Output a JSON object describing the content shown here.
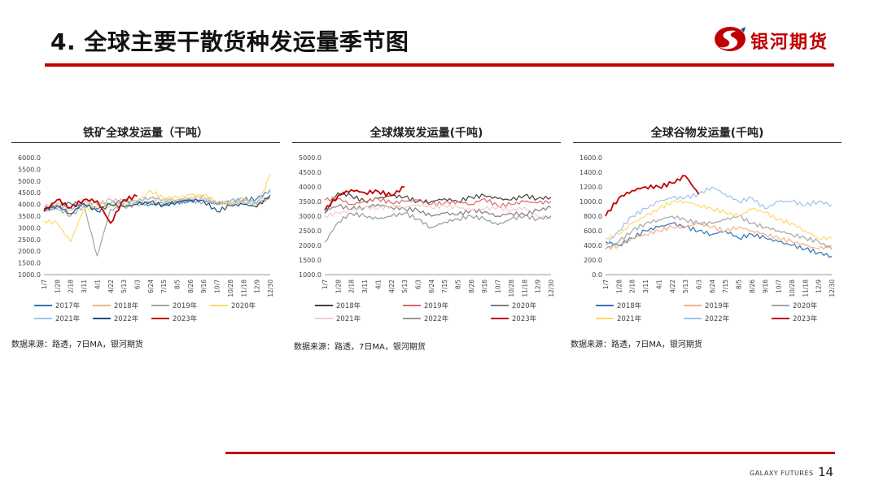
{
  "slide": {
    "title": "4. 全球主要干散货种发运量季节图",
    "brand": "银河期货",
    "footer_brand": "GALAXY FUTURES",
    "page_number": "14"
  },
  "colors": {
    "accent": "#c00000"
  },
  "chart_data": [
    {
      "id": "iron",
      "type": "line",
      "title": "铁矿全球发运量（干吨）",
      "source": "数据来源：路透，7日MA，银河期货",
      "ylim": [
        1000,
        6000
      ],
      "yticks": [
        "6000.0",
        "5500.0",
        "5000.0",
        "4500.0",
        "4000.0",
        "3500.0",
        "3000.0",
        "2500.0",
        "2000.0",
        "1500.0",
        "1000.0"
      ],
      "ytick_values": [
        6000,
        5500,
        5000,
        4500,
        4000,
        3500,
        3000,
        2500,
        2000,
        1500,
        1000
      ],
      "xticks": [
        "1/7",
        "1/28",
        "2/18",
        "3/11",
        "4/1",
        "4/22",
        "5/13",
        "6/3",
        "6/24",
        "7/15",
        "8/5",
        "8/26",
        "9/16",
        "10/7",
        "10/28",
        "11/18",
        "12/9",
        "12/30"
      ],
      "legend": "bottom",
      "legend_cols": 4,
      "series": [
        {
          "name": "2017年",
          "color": "#2e75b6",
          "values": [
            3800,
            3950,
            4050,
            4000,
            3800,
            4050,
            4150,
            4100,
            4000,
            4000,
            4100,
            4150,
            4200,
            4000,
            4150,
            4200,
            4250,
            4600
          ]
        },
        {
          "name": "2018年",
          "color": "#f4b183",
          "values": [
            3900,
            4050,
            3750,
            4200,
            4000,
            4200,
            4150,
            4150,
            4250,
            4200,
            4200,
            4300,
            4350,
            4050,
            4100,
            4250,
            4050,
            4300
          ]
        },
        {
          "name": "2019年",
          "color": "#a5a5a5",
          "values": [
            3700,
            3850,
            3500,
            3950,
            1800,
            3800,
            3900,
            4000,
            4050,
            4050,
            4100,
            4150,
            4100,
            4050,
            4050,
            4100,
            4000,
            4300
          ]
        },
        {
          "name": "2020年",
          "color": "#ffd966",
          "values": [
            3300,
            3200,
            2400,
            3800,
            3900,
            3950,
            4000,
            4050,
            4600,
            4250,
            4300,
            4400,
            4400,
            4100,
            4000,
            4250,
            3850,
            5300
          ]
        },
        {
          "name": "2021年",
          "color": "#9dc3e6",
          "values": [
            3750,
            3800,
            3850,
            4000,
            4050,
            4050,
            4050,
            4150,
            4300,
            4200,
            4150,
            4200,
            4200,
            4050,
            4150,
            4150,
            4100,
            4650
          ]
        },
        {
          "name": "2022年",
          "color": "#1f4e79",
          "values": [
            3800,
            3950,
            3600,
            4050,
            3700,
            4000,
            3900,
            4000,
            4100,
            3950,
            4100,
            4200,
            4150,
            3700,
            3950,
            4000,
            3900,
            4400
          ]
        },
        {
          "name": "2023年",
          "color": "#c00000",
          "values": [
            3700,
            4200,
            3850,
            4200,
            4150,
            3200,
            4200,
            4350,
            null,
            null,
            null,
            null,
            null,
            null,
            null,
            null,
            null,
            null
          ]
        }
      ]
    },
    {
      "id": "coal",
      "type": "line",
      "title": "全球煤炭发运量(千吨)",
      "source": "数据来源：路透，7日MA，银河期货",
      "ylim": [
        1000,
        5000
      ],
      "yticks": [
        "5000.0",
        "4500.0",
        "4000.0",
        "3500.0",
        "3000.0",
        "2500.0",
        "2000.0",
        "1500.0",
        "1000.0"
      ],
      "ytick_values": [
        5000,
        4500,
        4000,
        3500,
        3000,
        2500,
        2000,
        1500,
        1000
      ],
      "xticks": [
        "1/7",
        "1/28",
        "2/18",
        "3/11",
        "4/1",
        "4/22",
        "5/13",
        "6/3",
        "6/24",
        "7/15",
        "8/5",
        "8/26",
        "9/16",
        "10/7",
        "10/28",
        "11/18",
        "12/9",
        "12/30"
      ],
      "legend": "bottom",
      "legend_cols": 3,
      "series": [
        {
          "name": "2018年",
          "color": "#404040",
          "values": [
            3100,
            3800,
            3700,
            3500,
            3600,
            3700,
            3650,
            3500,
            3500,
            3600,
            3500,
            3650,
            3700,
            3600,
            3550,
            3700,
            3600,
            3650
          ]
        },
        {
          "name": "2019年",
          "color": "#e06666",
          "values": [
            3550,
            3600,
            3400,
            3500,
            3600,
            3450,
            3500,
            3550,
            3400,
            3450,
            3500,
            3400,
            3600,
            3350,
            3400,
            3500,
            3450,
            3500
          ]
        },
        {
          "name": "2020年",
          "color": "#7f7f7f",
          "values": [
            3200,
            3350,
            3250,
            3300,
            3400,
            3300,
            3250,
            3200,
            3000,
            3100,
            3050,
            3200,
            3150,
            3000,
            3100,
            3050,
            3200,
            3300
          ]
        },
        {
          "name": "2021年",
          "color": "#f4cccc",
          "values": [
            3000,
            3100,
            3200,
            3300,
            3250,
            3350,
            3300,
            3400,
            3300,
            3350,
            3300,
            3200,
            3250,
            3300,
            3200,
            3300,
            3000,
            2900
          ]
        },
        {
          "name": "2022年",
          "color": "#999999",
          "values": [
            2100,
            2800,
            3100,
            3000,
            2900,
            3000,
            3100,
            2900,
            2600,
            2800,
            2900,
            3000,
            2900,
            2700,
            2900,
            3000,
            2900,
            3000
          ]
        },
        {
          "name": "2023年",
          "color": "#c00000",
          "values": [
            3200,
            3700,
            3900,
            3800,
            3850,
            3700,
            4000,
            null,
            null,
            null,
            null,
            null,
            null,
            null,
            null,
            null,
            null,
            null
          ]
        }
      ]
    },
    {
      "id": "grain",
      "type": "line",
      "title": "全球谷物发运量(千吨)",
      "source": "数据来源：路透，7日MA，银河期货",
      "ylim": [
        0,
        1600
      ],
      "yticks": [
        "1600.0",
        "1400.0",
        "1200.0",
        "1000.0",
        "800.0",
        "600.0",
        "400.0",
        "200.0",
        "0.0"
      ],
      "ytick_values": [
        1600,
        1400,
        1200,
        1000,
        800,
        600,
        400,
        200,
        0
      ],
      "xticks": [
        "1/7",
        "1/28",
        "2/18",
        "3/11",
        "4/1",
        "4/22",
        "5/13",
        "6/3",
        "6/24",
        "7/15",
        "8/5",
        "8/26",
        "9/16",
        "10/7",
        "10/28",
        "11/18",
        "12/9",
        "12/30"
      ],
      "legend": "bottom",
      "legend_cols": 3,
      "series": [
        {
          "name": "2018年",
          "color": "#2e75b6",
          "values": [
            450,
            400,
            500,
            600,
            650,
            700,
            650,
            600,
            550,
            600,
            500,
            550,
            500,
            450,
            400,
            350,
            300,
            250
          ]
        },
        {
          "name": "2019年",
          "color": "#f4b183",
          "values": [
            350,
            400,
            500,
            550,
            600,
            650,
            650,
            700,
            650,
            600,
            650,
            600,
            550,
            500,
            450,
            400,
            350,
            400
          ]
        },
        {
          "name": "2020年",
          "color": "#a5a5a5",
          "values": [
            350,
            450,
            600,
            700,
            750,
            800,
            750,
            700,
            700,
            750,
            800,
            700,
            650,
            600,
            550,
            500,
            450,
            350
          ]
        },
        {
          "name": "2021年",
          "color": "#ffd966",
          "values": [
            500,
            550,
            700,
            800,
            900,
            1000,
            1000,
            950,
            900,
            850,
            800,
            900,
            850,
            750,
            700,
            600,
            500,
            500
          ]
        },
        {
          "name": "2022年",
          "color": "#9dc3e6",
          "values": [
            400,
            600,
            800,
            900,
            1000,
            1050,
            1050,
            1100,
            1200,
            1100,
            1000,
            1050,
            900,
            1000,
            1000,
            950,
            1000,
            950
          ]
        },
        {
          "name": "2023年",
          "color": "#c00000",
          "values": [
            800,
            1050,
            1150,
            1200,
            1200,
            1250,
            1350,
            1100,
            null,
            null,
            null,
            null,
            null,
            null,
            null,
            null,
            null,
            null
          ]
        }
      ]
    }
  ]
}
